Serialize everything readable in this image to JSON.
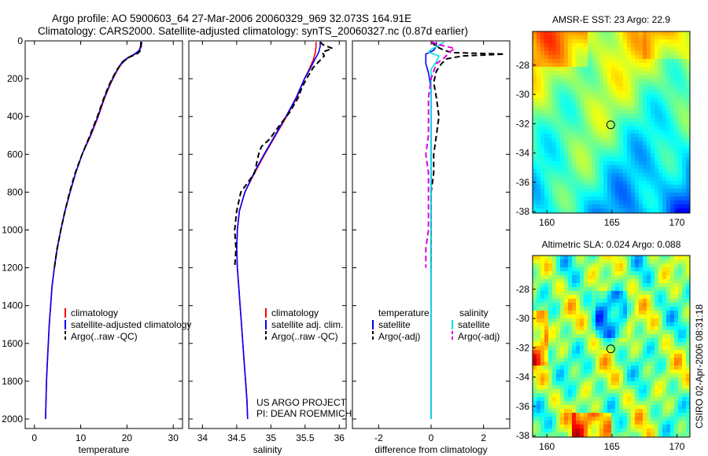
{
  "header": {
    "line1": "Argo profile: AO 5900603_64 27-Mar-2006 20060329_969 32.073S 164.91E",
    "line2": "Climatology: CARS2000. Satellite-adjusted climatology: synTS_20060327.nc (0.87d earlier)"
  },
  "credits": {
    "project": "US ARGO PROJECT",
    "pi": "PI: DEAN ROEMMICH",
    "stamp": "CSIRO 02-Apr-2006 08:31:18"
  },
  "colors": {
    "climatology": "#ff0000",
    "satellite": "#0000ff",
    "argo": "#000000",
    "salinity_satellite": "#00e5e5",
    "salinity_argo": "#e000e0"
  },
  "chart_data": [
    {
      "type": "line",
      "id": "temperature",
      "xlabel": "temperature",
      "ylabel": "",
      "xlim": [
        -2,
        32
      ],
      "ylim": [
        2050,
        0
      ],
      "xticks": [
        0,
        10,
        20,
        30
      ],
      "yticks": [
        0,
        200,
        400,
        600,
        800,
        1000,
        1200,
        1400,
        1600,
        1800,
        2000
      ],
      "legend": [
        "climatology",
        "satellite-adjusted climatology",
        "Argo(..raw -QC)"
      ],
      "series": [
        {
          "name": "climatology",
          "color": "#ff0000",
          "dash": "solid",
          "points": [
            [
              23.0,
              5
            ],
            [
              22.9,
              30
            ],
            [
              22.6,
              50
            ],
            [
              21.8,
              70
            ],
            [
              20.3,
              90
            ],
            [
              19.2,
              110
            ],
            [
              18.3,
              140
            ],
            [
              17.4,
              180
            ],
            [
              16.4,
              230
            ],
            [
              15.2,
              300
            ],
            [
              13.8,
              400
            ],
            [
              12.2,
              500
            ],
            [
              10.3,
              600
            ],
            [
              8.9,
              700
            ],
            [
              7.7,
              800
            ],
            [
              6.6,
              900
            ],
            [
              5.7,
              1000
            ],
            [
              4.9,
              1100
            ],
            [
              4.3,
              1200
            ],
            [
              3.8,
              1300
            ],
            [
              3.5,
              1400
            ],
            [
              3.2,
              1500
            ],
            [
              3.0,
              1600
            ],
            [
              2.8,
              1700
            ],
            [
              2.6,
              1800
            ],
            [
              2.5,
              1900
            ],
            [
              2.4,
              2000
            ]
          ]
        },
        {
          "name": "satellite",
          "color": "#0000ff",
          "dash": "solid",
          "points": [
            [
              23.2,
              5
            ],
            [
              23.1,
              30
            ],
            [
              22.7,
              50
            ],
            [
              21.6,
              70
            ],
            [
              20.1,
              90
            ],
            [
              19.0,
              110
            ],
            [
              18.2,
              140
            ],
            [
              17.3,
              180
            ],
            [
              16.3,
              230
            ],
            [
              15.1,
              300
            ],
            [
              13.7,
              400
            ],
            [
              12.1,
              500
            ],
            [
              10.3,
              600
            ],
            [
              8.9,
              700
            ],
            [
              7.7,
              800
            ],
            [
              6.6,
              900
            ],
            [
              5.7,
              1000
            ],
            [
              4.9,
              1100
            ],
            [
              4.3,
              1200
            ],
            [
              3.8,
              1300
            ],
            [
              3.5,
              1400
            ],
            [
              3.2,
              1500
            ],
            [
              3.0,
              1600
            ],
            [
              2.8,
              1700
            ],
            [
              2.6,
              1800
            ],
            [
              2.5,
              1900
            ],
            [
              2.4,
              2000
            ]
          ]
        },
        {
          "name": "argo",
          "color": "#000000",
          "dash": "dashed",
          "points": [
            [
              23.0,
              5
            ],
            [
              23.0,
              20
            ],
            [
              23.0,
              35
            ],
            [
              22.9,
              45
            ],
            [
              22.8,
              55
            ],
            [
              22.4,
              65
            ],
            [
              21.6,
              75
            ],
            [
              20.6,
              85
            ],
            [
              19.7,
              100
            ],
            [
              18.8,
              120
            ],
            [
              17.9,
              150
            ],
            [
              17.0,
              190
            ],
            [
              16.0,
              240
            ],
            [
              14.9,
              310
            ],
            [
              13.6,
              400
            ],
            [
              12.0,
              500
            ],
            [
              10.3,
              600
            ],
            [
              8.8,
              700
            ],
            [
              7.6,
              800
            ],
            [
              6.6,
              900
            ],
            [
              5.7,
              1000
            ],
            [
              4.9,
              1100
            ],
            [
              4.3,
              1200
            ]
          ]
        }
      ]
    },
    {
      "type": "line",
      "id": "salinity",
      "xlabel": "salinity",
      "ylabel": "",
      "xlim": [
        33.8,
        36.1
      ],
      "ylim": [
        2050,
        0
      ],
      "xticks": [
        34,
        34.5,
        35,
        35.5,
        36
      ],
      "legend": [
        "climatology",
        "satellite adj. clim.",
        "Argo(..raw -QC)"
      ],
      "series": [
        {
          "name": "climatology",
          "color": "#ff0000",
          "dash": "solid",
          "points": [
            [
              35.66,
              5
            ],
            [
              35.66,
              30
            ],
            [
              35.65,
              60
            ],
            [
              35.62,
              100
            ],
            [
              35.56,
              150
            ],
            [
              35.49,
              200
            ],
            [
              35.38,
              300
            ],
            [
              35.23,
              400
            ],
            [
              35.07,
              500
            ],
            [
              34.91,
              600
            ],
            [
              34.76,
              700
            ],
            [
              34.62,
              800
            ],
            [
              34.54,
              900
            ],
            [
              34.51,
              1000
            ],
            [
              34.5,
              1100
            ],
            [
              34.51,
              1200
            ],
            [
              34.53,
              1300
            ],
            [
              34.55,
              1400
            ],
            [
              34.57,
              1500
            ],
            [
              34.59,
              1600
            ],
            [
              34.61,
              1700
            ],
            [
              34.63,
              1800
            ],
            [
              34.65,
              1900
            ],
            [
              34.66,
              2000
            ]
          ]
        },
        {
          "name": "satellite",
          "color": "#0000ff",
          "dash": "solid",
          "points": [
            [
              35.72,
              5
            ],
            [
              35.72,
              30
            ],
            [
              35.7,
              60
            ],
            [
              35.64,
              100
            ],
            [
              35.57,
              150
            ],
            [
              35.49,
              200
            ],
            [
              35.37,
              300
            ],
            [
              35.22,
              400
            ],
            [
              35.06,
              500
            ],
            [
              34.9,
              600
            ],
            [
              34.75,
              700
            ],
            [
              34.62,
              800
            ],
            [
              34.54,
              900
            ],
            [
              34.51,
              1000
            ],
            [
              34.5,
              1100
            ],
            [
              34.51,
              1200
            ],
            [
              34.53,
              1300
            ],
            [
              34.55,
              1400
            ],
            [
              34.57,
              1500
            ],
            [
              34.59,
              1600
            ],
            [
              34.61,
              1700
            ],
            [
              34.63,
              1800
            ],
            [
              34.65,
              1900
            ],
            [
              34.66,
              2000
            ]
          ]
        },
        {
          "name": "argo",
          "color": "#000000",
          "dash": "dashed",
          "points": [
            [
              35.72,
              5
            ],
            [
              35.76,
              20
            ],
            [
              35.9,
              40
            ],
            [
              35.75,
              60
            ],
            [
              35.78,
              80
            ],
            [
              35.7,
              110
            ],
            [
              35.62,
              140
            ],
            [
              35.52,
              200
            ],
            [
              35.45,
              250
            ],
            [
              35.4,
              300
            ],
            [
              35.27,
              380
            ],
            [
              35.12,
              450
            ],
            [
              34.98,
              520
            ],
            [
              34.86,
              560
            ],
            [
              34.82,
              600
            ],
            [
              34.76,
              700
            ],
            [
              34.56,
              800
            ],
            [
              34.5,
              900
            ],
            [
              34.47,
              1000
            ],
            [
              34.49,
              1100
            ],
            [
              34.47,
              1200
            ]
          ]
        }
      ]
    },
    {
      "type": "line",
      "id": "difference",
      "xlabel": "difference from climatology",
      "ylabel": "",
      "xlim": [
        -3,
        3
      ],
      "ylim": [
        2050,
        0
      ],
      "xticks": [
        -2,
        0,
        2
      ],
      "legend_headers": [
        "temperature",
        "salinity"
      ],
      "legend": [
        "satellite",
        "Argo(-adj)",
        "satellite",
        "Argo(-adj)"
      ],
      "series": [
        {
          "name": "temperature satellite",
          "color": "#0000ff",
          "dash": "solid",
          "points": [
            [
              0.2,
              5
            ],
            [
              0.2,
              30
            ],
            [
              0.1,
              50
            ],
            [
              -0.2,
              70
            ],
            [
              -0.2,
              90
            ],
            [
              -0.2,
              120
            ],
            [
              -0.1,
              170
            ],
            [
              0.0,
              250
            ],
            [
              0.0,
              300
            ],
            [
              0.0,
              2000
            ]
          ]
        },
        {
          "name": "temperature Argo(-adj)",
          "color": "#000000",
          "dash": "dashed",
          "points": [
            [
              0.0,
              5
            ],
            [
              0.2,
              30
            ],
            [
              0.5,
              50
            ],
            [
              0.8,
              62
            ],
            [
              2.8,
              70
            ],
            [
              1.2,
              80
            ],
            [
              0.6,
              95
            ],
            [
              0.4,
              120
            ],
            [
              0.2,
              160
            ],
            [
              0.1,
              220
            ],
            [
              0.2,
              300
            ],
            [
              0.3,
              400
            ],
            [
              0.2,
              500
            ],
            [
              0.1,
              600
            ],
            [
              0.1,
              700
            ],
            [
              0.0,
              800
            ],
            [
              0.0,
              900
            ],
            [
              0.0,
              1000
            ],
            [
              0.0,
              1100
            ],
            [
              0.0,
              1200
            ]
          ]
        },
        {
          "name": "salinity satellite",
          "color": "#00e5e5",
          "dash": "solid",
          "points": [
            [
              0.5,
              5
            ],
            [
              0.3,
              25
            ],
            [
              0.0,
              45
            ],
            [
              -0.1,
              60
            ],
            [
              0.3,
              80
            ],
            [
              0.2,
              110
            ],
            [
              0.0,
              150
            ],
            [
              0.0,
              300
            ],
            [
              0.0,
              2000
            ]
          ]
        },
        {
          "name": "salinity Argo(-adj)",
          "color": "#e000e0",
          "dash": "dashed",
          "points": [
            [
              0.0,
              5
            ],
            [
              0.3,
              20
            ],
            [
              0.9,
              40
            ],
            [
              0.7,
              60
            ],
            [
              0.5,
              90
            ],
            [
              0.2,
              120
            ],
            [
              0.0,
              200
            ],
            [
              -0.1,
              300
            ],
            [
              -0.1,
              500
            ],
            [
              -0.2,
              600
            ],
            [
              -0.1,
              700
            ],
            [
              -0.1,
              800
            ],
            [
              -0.1,
              900
            ],
            [
              -0.1,
              1000
            ],
            [
              -0.2,
              1100
            ],
            [
              -0.2,
              1200
            ]
          ]
        }
      ]
    },
    {
      "type": "heatmap",
      "id": "sst",
      "title": "AMSR-E SST: 23 Argo: 22.9",
      "xlim": [
        158.9,
        171
      ],
      "ylim": [
        -38.1,
        -25.7
      ],
      "xticks": [
        160,
        165,
        170
      ],
      "yticks": [
        -28,
        -30,
        -32,
        -34,
        -36,
        -38
      ],
      "marker": [
        164.91,
        -32.073
      ],
      "palette": "jet"
    },
    {
      "type": "heatmap",
      "id": "sla",
      "title": "Altimetric SLA: 0.024 Argo: 0.088",
      "xlim": [
        158.9,
        171
      ],
      "ylim": [
        -38.1,
        -25.7
      ],
      "xticks": [
        160,
        165,
        170
      ],
      "yticks": [
        -28,
        -30,
        -32,
        -34,
        -36,
        -38
      ],
      "marker": [
        164.91,
        -32.073
      ],
      "palette": "jet"
    }
  ]
}
